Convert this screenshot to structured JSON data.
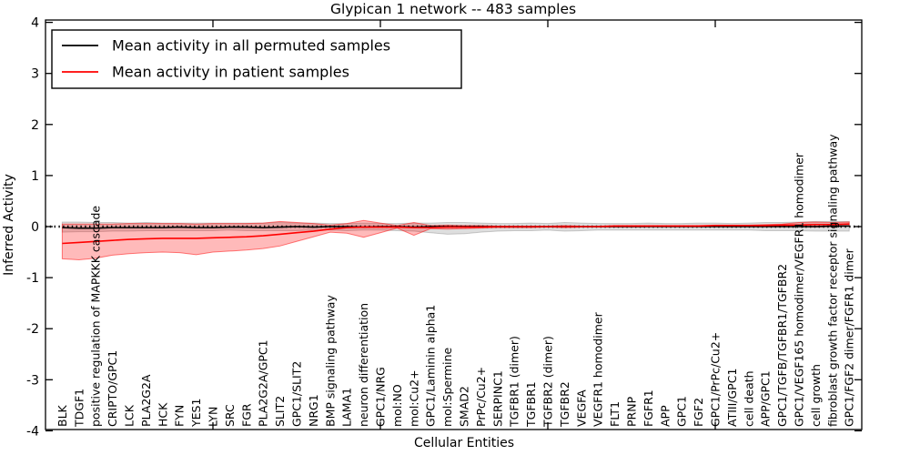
{
  "chart_data": {
    "type": "line",
    "title": "Glypican 1 network -- 483 samples",
    "xlabel": "Cellular Entities",
    "ylabel": "Inferred Activity",
    "ylim": [
      -4,
      4
    ],
    "ytick_labels": [
      "4",
      "3",
      "2",
      "1",
      "0",
      "-1",
      "-2",
      "-3",
      "-4"
    ],
    "ytick_values": [
      4,
      3,
      2,
      1,
      0,
      -1,
      -2,
      -3,
      -4
    ],
    "x_major_ticks": [
      10,
      20,
      30,
      40
    ],
    "grid": false,
    "legend_position": "upper-left-inside",
    "legend": [
      {
        "label": "Mean activity in all permuted samples",
        "color": "#000000"
      },
      {
        "label": "Mean activity in patient samples",
        "color": "#ff0000"
      }
    ],
    "categories": [
      "BLK",
      "TDGF1",
      "positive regulation of MAPKKK cascade",
      "CRIPTO/GPC1",
      "LCK",
      "PLA2G2A",
      "HCK",
      "FYN",
      "YES1",
      "LYN",
      "SRC",
      "FGR",
      "PLA2G2A/GPC1",
      "SLIT2",
      "GPC1/SLIT2",
      "NRG1",
      "BMP signaling pathway",
      "LAMA1",
      "neuron differentiation",
      "GPC1/NRG",
      "mol:NO",
      "mol:Cu2+",
      "GPC1/Laminin alpha1",
      "mol:Spermine",
      "SMAD2",
      "PrPc/Cu2+",
      "SERPINC1",
      "TGFBR1 (dimer)",
      "TGFBR1",
      "TGFBR2 (dimer)",
      "TGFBR2",
      "VEGFA",
      "VEGFR1 homodimer",
      "FLT1",
      "PRNP",
      "FGFR1",
      "APP",
      "GPC1",
      "FGF2",
      "GPC1/PrPc/Cu2+",
      "ATIII/GPC1",
      "cell death",
      "APP/GPC1",
      "GPC1/TGFB/TGFBR1/TGFBR2",
      "GPC1/VEGF165 homodimer/VEGFR1 homodimer",
      "cell growth",
      "fibroblast growth factor receptor signaling pathway",
      "GPC1/FGF2 dimer/FGFR1 dimer"
    ],
    "series": [
      {
        "name": "Mean activity in all permuted samples",
        "color": "#000000",
        "values": [
          -0.02,
          -0.03,
          -0.03,
          -0.02,
          -0.02,
          -0.02,
          -0.02,
          -0.01,
          -0.02,
          -0.02,
          -0.01,
          -0.01,
          -0.02,
          -0.01,
          0.0,
          -0.01,
          0.0,
          0.0,
          -0.01,
          0.0,
          0.0,
          -0.01,
          0.0,
          0.0,
          0.0,
          0.0,
          0.0,
          0.0,
          0.0,
          0.0,
          0.0,
          0.0,
          0.0,
          0.0,
          0.0,
          0.0,
          0.0,
          0.0,
          0.0,
          0.0,
          0.0,
          0.0,
          0.0,
          0.0,
          0.0,
          0.0,
          0.01,
          0.01
        ]
      },
      {
        "name": "Mean activity in patient samples",
        "color": "#ff0000",
        "values": [
          -0.33,
          -0.31,
          -0.29,
          -0.27,
          -0.25,
          -0.24,
          -0.23,
          -0.23,
          -0.23,
          -0.22,
          -0.21,
          -0.2,
          -0.18,
          -0.15,
          -0.12,
          -0.09,
          -0.05,
          -0.02,
          -0.01,
          -0.01,
          -0.01,
          -0.02,
          -0.02,
          -0.01,
          -0.01,
          -0.01,
          0.0,
          0.0,
          0.0,
          0.0,
          0.0,
          0.0,
          0.0,
          0.01,
          0.01,
          0.01,
          0.01,
          0.01,
          0.01,
          0.02,
          0.02,
          0.02,
          0.02,
          0.03,
          0.03,
          0.04,
          0.04,
          0.05
        ]
      }
    ],
    "bands": [
      {
        "name": "permuted samples range",
        "fill": "rgba(0,0,0,0.13)",
        "edge": "rgba(0,0,0,0.18)",
        "upper": [
          0.09,
          0.09,
          0.08,
          0.08,
          0.07,
          0.08,
          0.07,
          0.07,
          0.07,
          0.07,
          0.07,
          0.07,
          0.07,
          0.08,
          0.07,
          0.07,
          0.06,
          0.06,
          0.07,
          0.06,
          0.06,
          0.07,
          0.07,
          0.08,
          0.08,
          0.07,
          0.06,
          0.06,
          0.07,
          0.06,
          0.08,
          0.07,
          0.06,
          0.06,
          0.06,
          0.07,
          0.06,
          0.06,
          0.07,
          0.07,
          0.06,
          0.07,
          0.08,
          0.08,
          0.09,
          0.1,
          0.1,
          0.1
        ],
        "lower": [
          -0.11,
          -0.1,
          -0.1,
          -0.09,
          -0.09,
          -0.08,
          -0.08,
          -0.08,
          -0.08,
          -0.08,
          -0.07,
          -0.08,
          -0.08,
          -0.08,
          -0.08,
          -0.07,
          -0.07,
          -0.08,
          -0.07,
          -0.07,
          -0.08,
          -0.09,
          -0.12,
          -0.15,
          -0.14,
          -0.11,
          -0.09,
          -0.08,
          -0.08,
          -0.07,
          -0.09,
          -0.08,
          -0.07,
          -0.07,
          -0.07,
          -0.07,
          -0.07,
          -0.07,
          -0.07,
          -0.07,
          -0.07,
          -0.07,
          -0.08,
          -0.08,
          -0.08,
          -0.09,
          -0.09,
          -0.09
        ]
      },
      {
        "name": "patient samples range",
        "fill": "rgba(255,0,0,0.27)",
        "edge": "rgba(255,0,0,0.5)",
        "upper": [
          0.05,
          0.05,
          0.05,
          0.05,
          0.06,
          0.06,
          0.06,
          0.06,
          0.05,
          0.06,
          0.06,
          0.06,
          0.07,
          0.1,
          0.08,
          0.06,
          0.03,
          0.06,
          0.12,
          0.07,
          0.02,
          0.08,
          0.02,
          0.03,
          0.02,
          0.02,
          0.01,
          0.01,
          0.01,
          0.01,
          0.02,
          0.01,
          0.01,
          0.02,
          0.02,
          0.02,
          0.02,
          0.02,
          0.02,
          0.03,
          0.03,
          0.03,
          0.04,
          0.05,
          0.08,
          0.09,
          0.08,
          0.09
        ],
        "lower": [
          -0.63,
          -0.65,
          -0.62,
          -0.56,
          -0.53,
          -0.51,
          -0.5,
          -0.51,
          -0.55,
          -0.5,
          -0.48,
          -0.46,
          -0.43,
          -0.38,
          -0.29,
          -0.2,
          -0.11,
          -0.13,
          -0.21,
          -0.12,
          -0.03,
          -0.17,
          -0.04,
          -0.05,
          -0.04,
          -0.03,
          -0.02,
          -0.02,
          -0.02,
          -0.01,
          -0.02,
          -0.01,
          -0.01,
          -0.01,
          -0.01,
          0.0,
          0.0,
          0.0,
          0.0,
          0.0,
          0.01,
          0.01,
          0.01,
          0.01,
          0.0,
          -0.01,
          0.0,
          0.01
        ]
      }
    ],
    "zero_reference_line": {
      "style": "dotted",
      "color": "#000000",
      "value": 0
    }
  }
}
